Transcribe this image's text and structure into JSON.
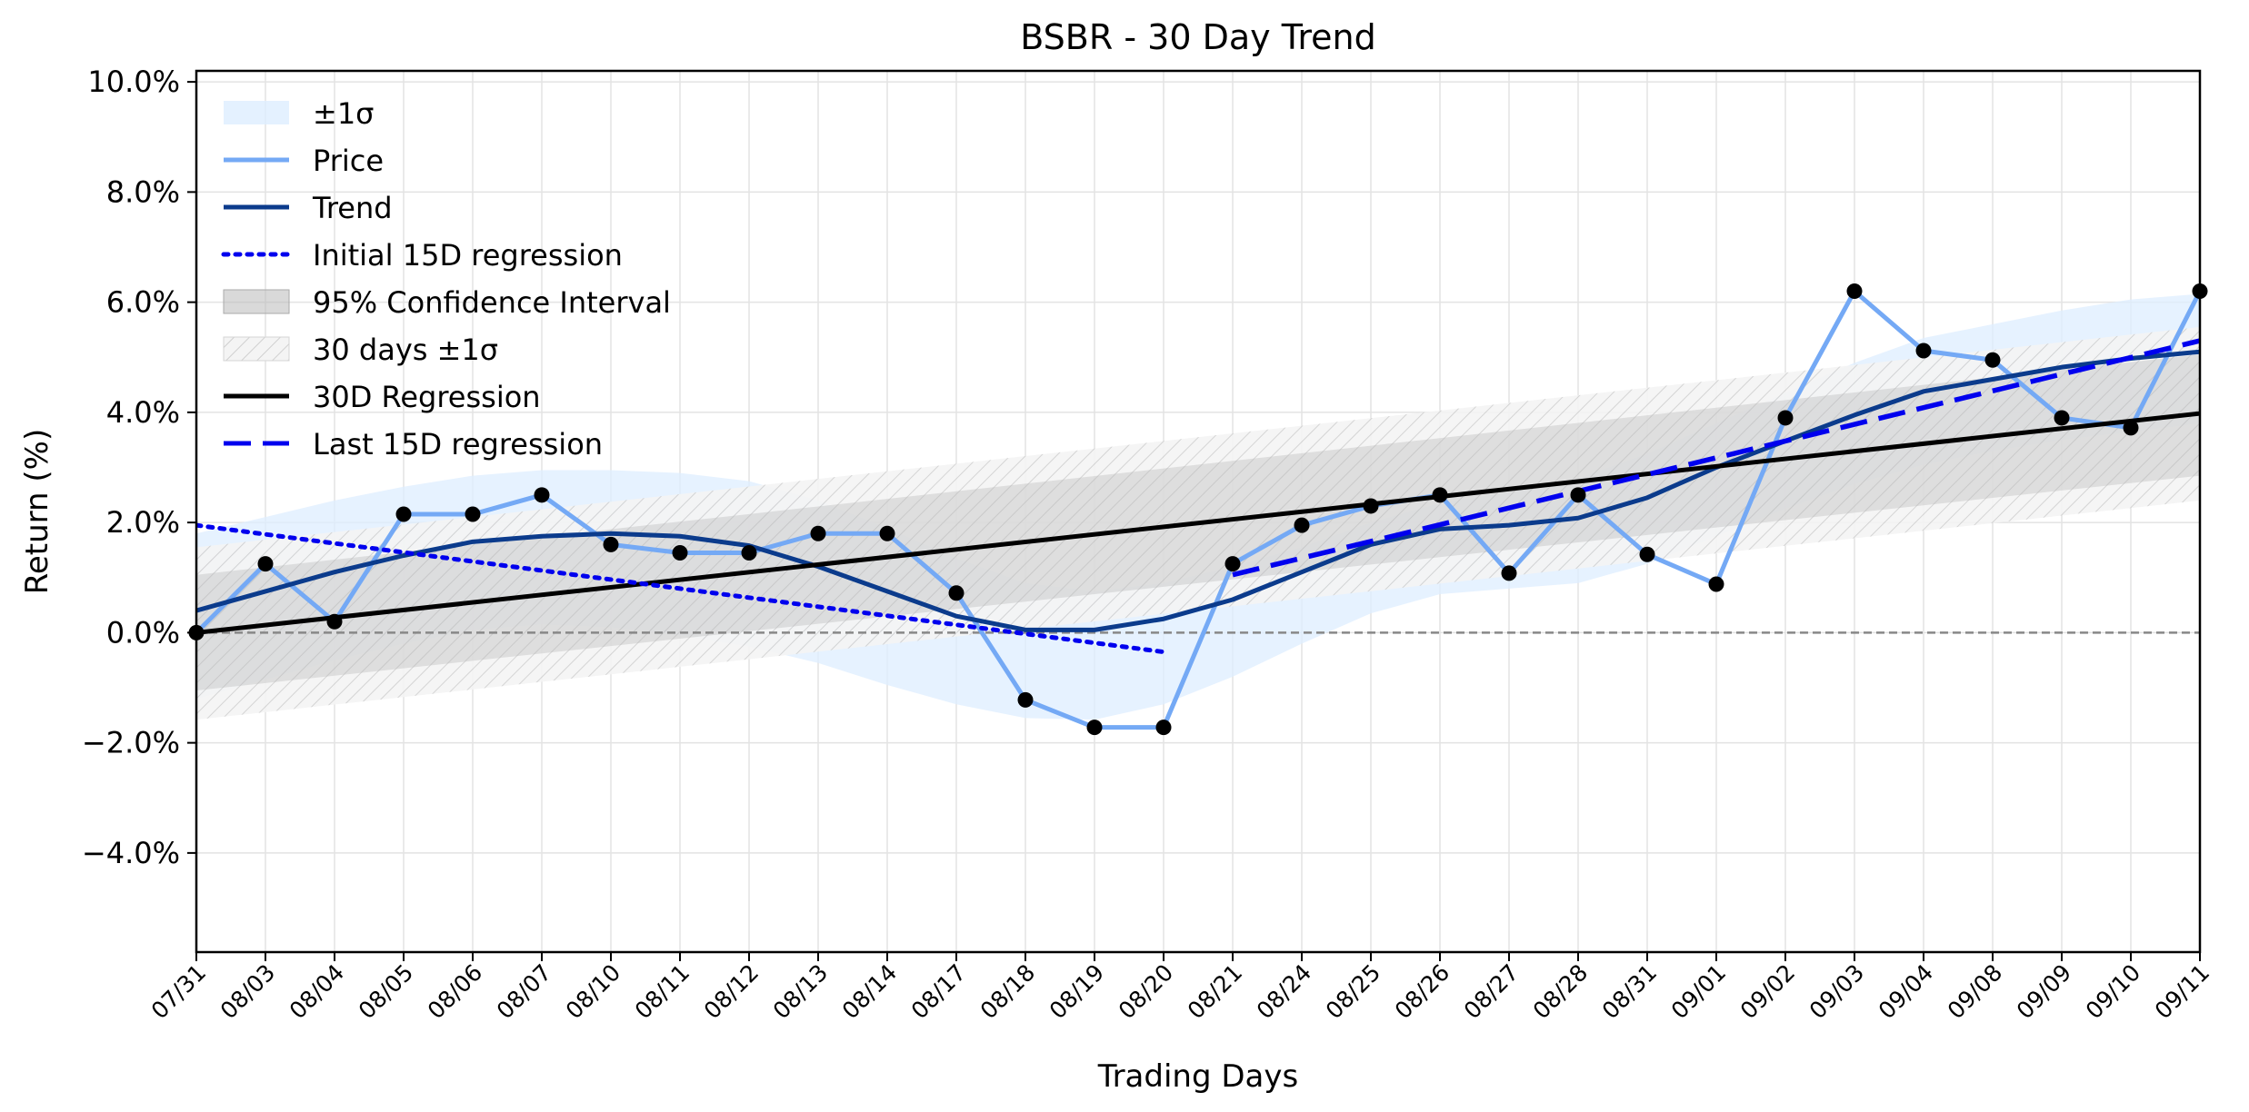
{
  "chart_data": {
    "type": "line",
    "title": "BSBR - 30 Day Trend",
    "xlabel": "Trading Days",
    "ylabel": "Return (%)",
    "categories": [
      "07/31",
      "08/03",
      "08/04",
      "08/05",
      "08/06",
      "08/07",
      "08/10",
      "08/11",
      "08/12",
      "08/13",
      "08/14",
      "08/17",
      "08/18",
      "08/19",
      "08/20",
      "08/21",
      "08/24",
      "08/25",
      "08/26",
      "08/27",
      "08/28",
      "08/31",
      "09/01",
      "09/02",
      "09/03",
      "09/04",
      "09/08",
      "09/09",
      "09/10",
      "09/11"
    ],
    "ylim": [
      -5.8,
      10.2
    ],
    "yticks": [
      -4.0,
      -2.0,
      0.0,
      2.0,
      4.0,
      6.0,
      8.0,
      10.0
    ],
    "ytick_labels": [
      "−4.0%",
      "−2.0%",
      "0.0%",
      "2.0%",
      "4.0%",
      "6.0%",
      "8.0%",
      "10.0%"
    ],
    "grid": true,
    "legend_position": "top-left",
    "series": [
      {
        "name": "Price",
        "color": "#74a9f5",
        "values": [
          0.0,
          1.25,
          0.2,
          2.15,
          2.15,
          2.5,
          1.6,
          1.45,
          1.45,
          1.8,
          1.8,
          0.72,
          -1.22,
          -1.72,
          -1.72,
          1.25,
          1.95,
          2.3,
          2.5,
          1.08,
          2.5,
          1.42,
          0.88,
          3.9,
          6.2,
          5.12,
          4.95,
          3.9,
          3.72,
          6.2
        ]
      },
      {
        "name": "Trend",
        "color": "#0b3b8c",
        "values": [
          0.4,
          0.75,
          1.1,
          1.4,
          1.65,
          1.75,
          1.8,
          1.75,
          1.58,
          1.2,
          0.75,
          0.3,
          0.05,
          0.05,
          0.25,
          0.6,
          1.1,
          1.6,
          1.88,
          1.95,
          2.08,
          2.45,
          3.0,
          3.48,
          3.95,
          4.38,
          4.6,
          4.82,
          4.98,
          5.1
        ]
      },
      {
        "name": "±1σ",
        "color": "#ddeeff",
        "band_lower": [
          -1.2,
          -0.85,
          -0.5,
          -0.2,
          0.05,
          0.15,
          0.1,
          -0.05,
          -0.25,
          -0.55,
          -0.95,
          -1.3,
          -1.55,
          -1.58,
          -1.3,
          -0.8,
          -0.2,
          0.35,
          0.7,
          0.8,
          0.9,
          1.25,
          1.75,
          2.25,
          2.7,
          3.05,
          3.3,
          3.5,
          3.65,
          3.8
        ],
        "band_upper": [
          1.8,
          2.1,
          2.4,
          2.65,
          2.85,
          2.95,
          2.95,
          2.9,
          2.75,
          2.4,
          1.9,
          1.35,
          0.9,
          0.75,
          0.9,
          1.2,
          1.55,
          2.0,
          2.35,
          2.55,
          2.8,
          3.25,
          3.8,
          4.35,
          4.9,
          5.35,
          5.6,
          5.85,
          6.05,
          6.15
        ]
      },
      {
        "name": "Initial 15D regression",
        "color": "#0000ee",
        "style": "dotted",
        "x_range": [
          "07/31",
          "08/20"
        ],
        "y_start": 1.95,
        "y_end": -0.35
      },
      {
        "name": "95% Confidence Interval",
        "color": "#c8c8c8",
        "lower_start": -1.05,
        "lower_end": 2.85,
        "upper_start": 1.05,
        "upper_end": 5.05
      },
      {
        "name": "30 days ±1σ",
        "color": "#d9d9d9",
        "style": "hatched",
        "lower_start": -1.58,
        "lower_end": 2.4,
        "upper_start": 1.55,
        "upper_end": 5.55
      },
      {
        "name": "30D Regression",
        "color": "#000000",
        "x_range": [
          "07/31",
          "09/11"
        ],
        "y_start": 0.0,
        "y_end": 3.98
      },
      {
        "name": "Last 15D regression",
        "color": "#0000ee",
        "style": "dashed",
        "x_range": [
          "08/21",
          "09/11"
        ],
        "y_start": 1.05,
        "y_end": 5.3
      }
    ],
    "reference_line": {
      "y": 0.0,
      "color": "#888888",
      "style": "dashed"
    }
  }
}
